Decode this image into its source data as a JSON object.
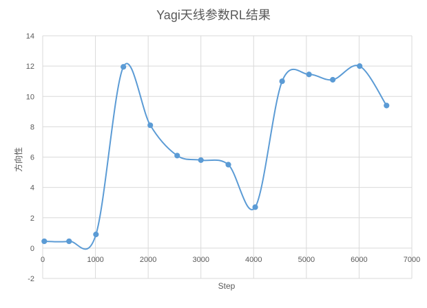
{
  "chart_data": {
    "type": "line",
    "title": "Yagi天线参数RL结果",
    "xlabel": "Step",
    "ylabel": "方向性",
    "xlim": [
      0,
      7000
    ],
    "ylim": [
      -2,
      14
    ],
    "x_ticks": [
      0,
      1000,
      2000,
      3000,
      4000,
      5000,
      6000,
      7000
    ],
    "y_ticks": [
      -2,
      0,
      2,
      4,
      6,
      8,
      10,
      12,
      14
    ],
    "grid": true,
    "smooth": true,
    "legend": "none",
    "colors": {
      "line": "#5B9BD5",
      "grid": "#D9D9D9",
      "axis_text": "#595959",
      "title": "#595959"
    },
    "series": [
      {
        "x": [
          30,
          500,
          1010,
          1530,
          2040,
          2550,
          3000,
          3520,
          4030,
          4540,
          5050,
          5500,
          6010,
          6520
        ],
        "y": [
          0.45,
          0.45,
          0.9,
          11.95,
          8.1,
          6.1,
          5.8,
          5.5,
          2.7,
          11.0,
          11.45,
          11.1,
          12.0,
          9.4
        ]
      }
    ]
  }
}
